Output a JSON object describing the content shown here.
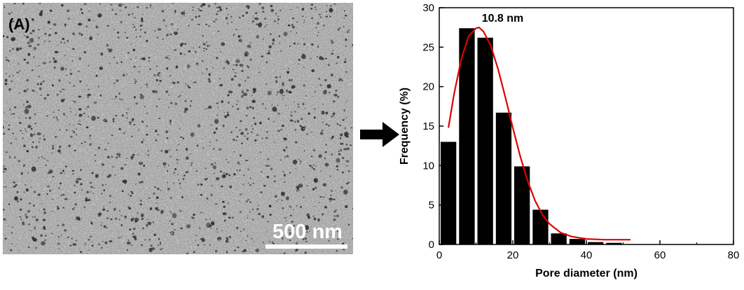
{
  "sem": {
    "panel_label": "(A)",
    "scale_label": "500 nm",
    "colors": {
      "background": "#8d8d8d",
      "grain_light": "#c4c4c4",
      "pore_dark": "#2e2e2e"
    }
  },
  "arrow": {
    "icon": "right-arrow-icon",
    "color": "#000000"
  },
  "chart_data": {
    "type": "bar",
    "xlabel": "Pore diameter (nm)",
    "ylabel": "Frequency (%)",
    "xlim": [
      0,
      80
    ],
    "ylim": [
      0,
      30
    ],
    "x_ticks": [
      0,
      20,
      40,
      60,
      80
    ],
    "y_ticks": [
      0,
      5,
      10,
      15,
      20,
      25,
      30
    ],
    "bin_width": 5,
    "bins": [
      {
        "center": 2.5,
        "value": 13.0
      },
      {
        "center": 7.5,
        "value": 27.4
      },
      {
        "center": 12.5,
        "value": 26.2
      },
      {
        "center": 17.5,
        "value": 16.7
      },
      {
        "center": 22.5,
        "value": 9.9
      },
      {
        "center": 27.5,
        "value": 4.4
      },
      {
        "center": 32.5,
        "value": 1.4
      },
      {
        "center": 37.5,
        "value": 0.7
      },
      {
        "center": 42.5,
        "value": 0.3
      },
      {
        "center": 47.5,
        "value": 0.2
      }
    ],
    "fit": {
      "type": "lognormal",
      "peak_x": 10.8,
      "peak_y": 27.5,
      "x": [
        2.5,
        4,
        6,
        8,
        10,
        10.8,
        12,
        14,
        16,
        18,
        20,
        22,
        24,
        26,
        28,
        30,
        33,
        36,
        40,
        45,
        52
      ],
      "y": [
        14.8,
        19.0,
        23.5,
        26.4,
        27.4,
        27.5,
        27.0,
        25.2,
        22.2,
        18.6,
        14.8,
        11.2,
        8.1,
        5.6,
        3.8,
        2.6,
        1.5,
        1.0,
        0.7,
        0.6,
        0.6
      ],
      "color": "#e00000"
    },
    "annotation": "10.8 nm",
    "bar_color": "#000000",
    "grid": false,
    "legend": "none"
  }
}
